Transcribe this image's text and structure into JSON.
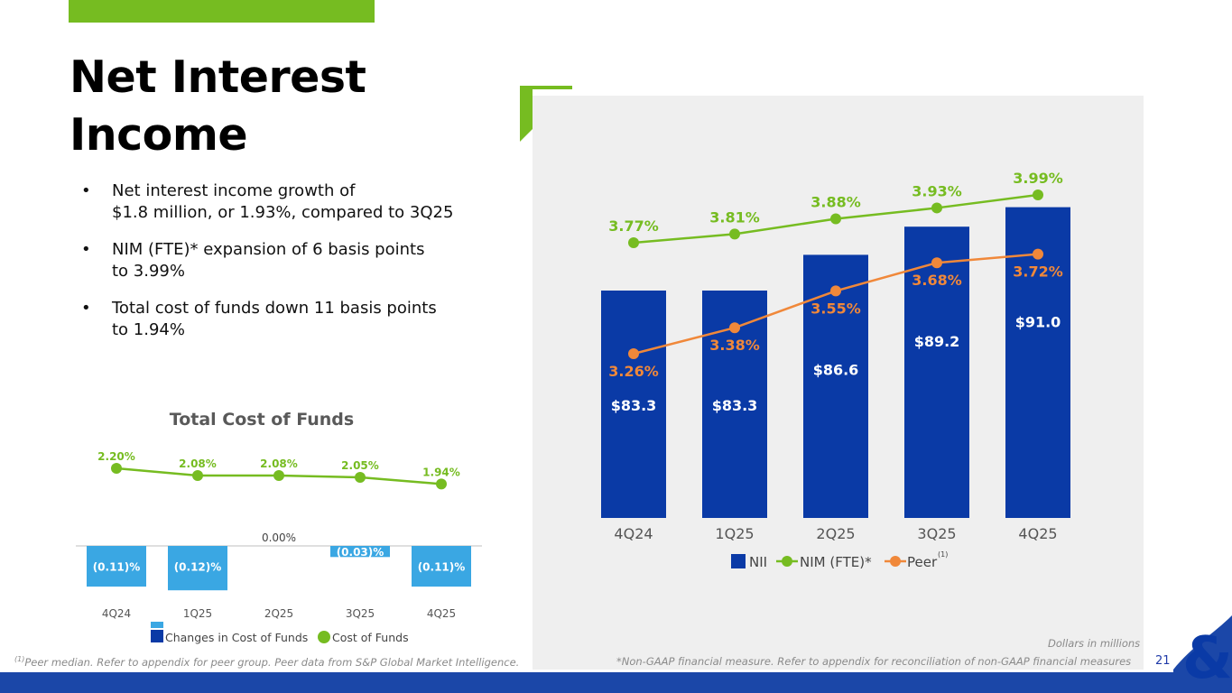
{
  "title": {
    "line1": "Net Interest",
    "line2": "Income"
  },
  "bullets": [
    {
      "line1": "Net interest income growth of",
      "line2": "$1.8 million, or 1.93%, compared to 3Q25"
    },
    {
      "line1": "NIM (FTE)* expansion of 6 basis points",
      "line2": "to 3.99%"
    },
    {
      "line1": "Total cost of funds down 11 basis points",
      "line2": "to 1.94%"
    }
  ],
  "bullet_marker": "•",
  "colors": {
    "green": "#76bc21",
    "navy": "#0a3aa6",
    "orange": "#f0883a",
    "light_blue": "#3aa7e3",
    "band": "#1b47a8"
  },
  "chart_data": [
    {
      "type": "bar",
      "title": "",
      "categories": [
        "4Q24",
        "1Q25",
        "2Q25",
        "3Q25",
        "4Q25"
      ],
      "series": [
        {
          "name": "NII",
          "kind": "bar",
          "values": [
            83.3,
            83.3,
            86.6,
            89.2,
            91.0
          ],
          "labels": [
            "$83.3",
            "$83.3",
            "$86.6",
            "$89.2",
            "$91.0"
          ]
        },
        {
          "name": "NIM (FTE)*",
          "kind": "line",
          "values": [
            3.77,
            3.81,
            3.88,
            3.93,
            3.99
          ],
          "labels": [
            "3.77%",
            "3.81%",
            "3.88%",
            "3.93%",
            "3.99%"
          ]
        },
        {
          "name": "Peer",
          "kind": "line",
          "values": [
            3.26,
            3.38,
            3.55,
            3.68,
            3.72
          ],
          "labels": [
            "3.26%",
            "3.38%",
            "3.55%",
            "3.68%",
            "3.72%"
          ]
        }
      ],
      "legend": [
        {
          "label": "NII"
        },
        {
          "label": "NIM (FTE)*"
        },
        {
          "label": "Peer",
          "superscript": "(1)"
        }
      ],
      "unit_note": "Dollars in millions"
    },
    {
      "type": "bar",
      "title": "Total Cost of Funds",
      "categories": [
        "4Q24",
        "1Q25",
        "2Q25",
        "3Q25",
        "4Q25"
      ],
      "series": [
        {
          "name": "Changes in Cost of Funds",
          "kind": "bar",
          "values": [
            -0.11,
            -0.12,
            0.0,
            -0.03,
            -0.11
          ],
          "labels": [
            "(0.11)%",
            "(0.12)%",
            "0.00%",
            "(0.03)%",
            "(0.11)%"
          ]
        },
        {
          "name": "Cost of Funds",
          "kind": "line",
          "values": [
            2.2,
            2.08,
            2.08,
            2.05,
            1.94
          ],
          "labels": [
            "2.20%",
            "2.08%",
            "2.08%",
            "2.05%",
            "1.94%"
          ]
        }
      ],
      "legend": [
        {
          "label": "Changes in Cost of Funds"
        },
        {
          "label": "Cost of Funds"
        }
      ]
    }
  ],
  "footnotes": {
    "peer": "Peer median. Refer to appendix for peer group. Peer data from S&P Global Market Intelligence.",
    "peer_sup": "(1)",
    "nongaap": "*Non-GAAP financial measure. Refer to appendix for reconciliation of non-GAAP financial measures",
    "units": "Dollars in millions"
  },
  "page_number": "21",
  "logo": "&"
}
